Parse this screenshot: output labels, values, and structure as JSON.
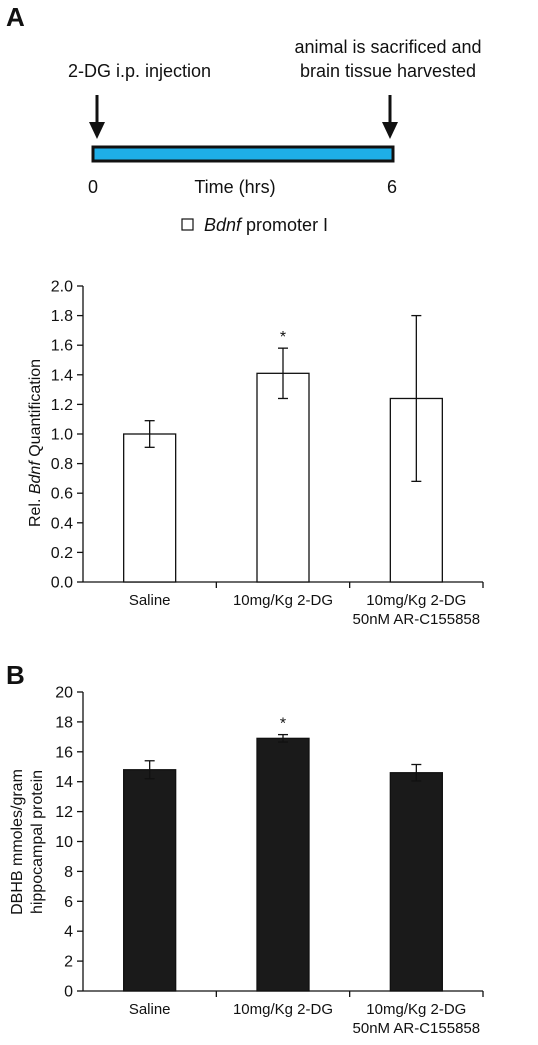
{
  "panel_a": {
    "label": "A",
    "timeline": {
      "start_text": "2-DG i.p. injection",
      "end_text_line1": "animal is sacrificed and",
      "end_text_line2": "brain tissue harvested",
      "start_tick": "0",
      "end_tick": "6",
      "axis_label": "Time (hrs)",
      "bar_color": "#1EAEE8"
    },
    "legend": {
      "italic": "Bdnf",
      "rest": " promoter I"
    }
  },
  "panel_b": {
    "label": "B"
  },
  "chart_data": [
    {
      "type": "bar",
      "ylabel_prefix": "Rel. ",
      "ylabel_italic": "Bdnf",
      "ylabel_suffix": " Quantification",
      "categories": [
        [
          "Saline"
        ],
        [
          "10mg/Kg 2-DG"
        ],
        [
          "10mg/Kg 2-DG",
          "50nM AR-C155858"
        ]
      ],
      "values": [
        1.0,
        1.41,
        1.24
      ],
      "error": [
        0.09,
        0.17,
        0.56
      ],
      "significance": [
        "",
        "*",
        ""
      ],
      "ylim": [
        0,
        2.0
      ],
      "yticks": [
        "0.0",
        "0.2",
        "0.4",
        "0.6",
        "0.8",
        "1.0",
        "1.2",
        "1.4",
        "1.6",
        "1.8",
        "2.0"
      ],
      "bar_color": "#ffffff"
    },
    {
      "type": "bar",
      "ylabel_line1": "DBHB mmoles/gram",
      "ylabel_line2": "hippocampal protein",
      "categories": [
        [
          "Saline"
        ],
        [
          "10mg/Kg 2-DG"
        ],
        [
          "10mg/Kg 2-DG",
          "50nM AR-C155858"
        ]
      ],
      "values": [
        14.8,
        16.9,
        14.6
      ],
      "error": [
        0.6,
        0.25,
        0.55
      ],
      "significance": [
        "",
        "*",
        ""
      ],
      "ylim": [
        0,
        20
      ],
      "yticks": [
        "0",
        "2",
        "4",
        "6",
        "8",
        "10",
        "12",
        "14",
        "16",
        "18",
        "20"
      ],
      "bar_color": "#1a1a1a"
    }
  ]
}
